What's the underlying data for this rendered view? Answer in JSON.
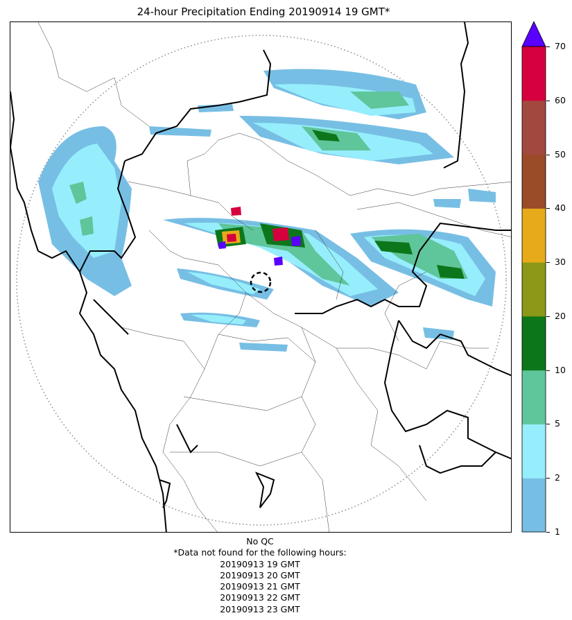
{
  "title": "24-hour Precipitation Ending 20190914 19 GMT*",
  "colorbar": {
    "levels": [
      "1",
      "2",
      "5",
      "10",
      "20",
      "30",
      "40",
      "50",
      "60",
      "70"
    ],
    "colors": [
      "#77bee4",
      "#96eefc",
      "#5fc59a",
      "#0c761a",
      "#8b9818",
      "#e7aa1a",
      "#9a4b28",
      "#a3483e",
      "#d6003e"
    ],
    "extend_color": "#5a00ff"
  },
  "footer": {
    "qc": "No QC",
    "note": "*Data not found for the following hours:",
    "hours": [
      "20190913 19 GMT",
      "20190913 20 GMT",
      "20190913 21 GMT",
      "20190913 22 GMT",
      "20190913 23 GMT"
    ]
  },
  "map": {
    "range_ring": "dotted",
    "radar_site_marker": "dashed-circle"
  }
}
